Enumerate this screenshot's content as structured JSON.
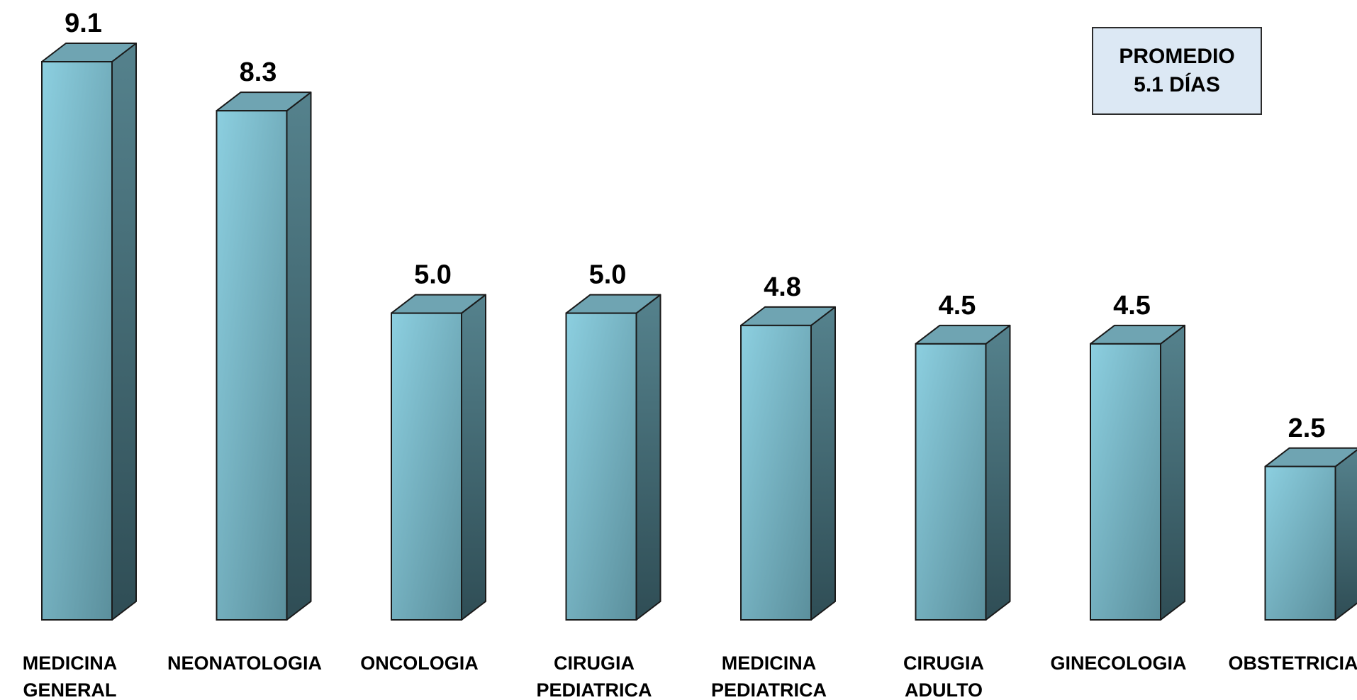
{
  "chart_data": {
    "type": "bar",
    "style": "3d-column",
    "categories": [
      [
        "MEDICINA",
        "GENERAL"
      ],
      [
        "NEONATOLOGIA"
      ],
      [
        "ONCOLOGIA"
      ],
      [
        "CIRUGIA",
        "PEDIATRICA"
      ],
      [
        "MEDICINA",
        "PEDIATRICA"
      ],
      [
        "CIRUGIA",
        "ADULTO"
      ],
      [
        "GINECOLOGIA"
      ],
      [
        "OBSTETRICIA"
      ]
    ],
    "values": [
      9.1,
      8.3,
      5.0,
      5.0,
      4.8,
      4.5,
      4.5,
      2.5
    ],
    "value_labels": [
      "9.1",
      "8.3",
      "5.0",
      "5.0",
      "4.8",
      "4.5",
      "4.5",
      "2.5"
    ],
    "title": "",
    "xlabel": "",
    "ylabel": "",
    "ylim": [
      0,
      9.1
    ],
    "grid": false,
    "colors": {
      "front_light": "#8ccfe0",
      "front_dark": "#5b8f9c",
      "top": "#6fa4b2",
      "side_light": "#55828d",
      "side_dark": "#2f4d55",
      "outline": "#1a1a1a"
    }
  },
  "annotation": {
    "line1": "PROMEDIO",
    "line2": "5.1 DÍAS"
  }
}
